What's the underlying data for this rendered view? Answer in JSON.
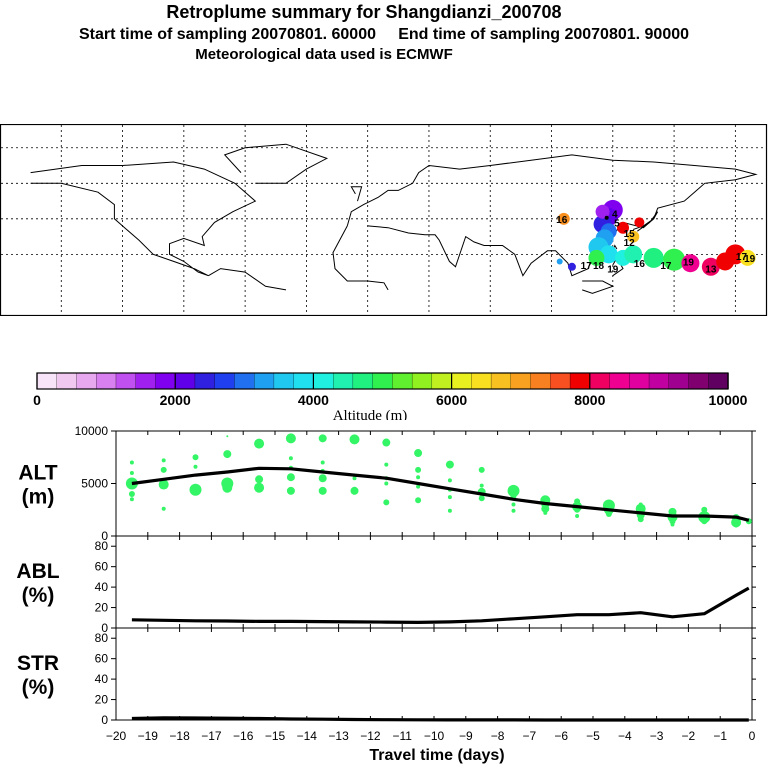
{
  "header": {
    "title": "Retroplume summary for Shangdianzi_200708",
    "sampling_line": "Start time of sampling 20070801. 60000     End time of sampling 20070801. 90000",
    "met_line": "Meteorological data used is ECMWF"
  },
  "colorbar": {
    "label": "Altitude (m)",
    "tick_labels": [
      "0",
      "2000",
      "4000",
      "6000",
      "8000",
      "10000"
    ],
    "colors": [
      "#f8e4f8",
      "#f0c8f0",
      "#e8a8f0",
      "#d880f0",
      "#c050f0",
      "#a020f0",
      "#8000f0",
      "#6000e8",
      "#3020e0",
      "#2040f0",
      "#2070f0",
      "#20a0f0",
      "#20c8f0",
      "#20e0f0",
      "#20f0e0",
      "#20f0b0",
      "#20f080",
      "#30f050",
      "#60f030",
      "#90f020",
      "#c0f020",
      "#e8f020",
      "#f8e020",
      "#f8c020",
      "#f8a020",
      "#f88020",
      "#f85020",
      "#f00000",
      "#f00060",
      "#f00090",
      "#e000a0",
      "#c000a0",
      "#a00090",
      "#800070",
      "#600060"
    ]
  },
  "map": {
    "station": "Shangdianzi",
    "labels": [
      {
        "text": "16",
        "lon": 95,
        "lat": 40,
        "color": "#f89020"
      },
      {
        "text": "4",
        "lon": 121,
        "lat": 43,
        "color": "#7000e8"
      },
      {
        "text": "5",
        "lon": 122,
        "lat": 38,
        "color": "#2040f0"
      },
      {
        "text": "12",
        "lon": 128,
        "lat": 27,
        "color": "#f8e020"
      },
      {
        "text": "15",
        "lon": 128,
        "lat": 32,
        "color": "#f8e020"
      },
      {
        "text": "17",
        "lon": 107,
        "lat": 14,
        "color": "#20f0b0"
      },
      {
        "text": "18",
        "lon": 113,
        "lat": 14,
        "color": "#20e0f0"
      },
      {
        "text": "19",
        "lon": 120,
        "lat": 12,
        "color": "#20c8f0"
      },
      {
        "text": "16",
        "lon": 133,
        "lat": 15,
        "color": "#30f050"
      },
      {
        "text": "17",
        "lon": 146,
        "lat": 14,
        "color": "#30f050"
      },
      {
        "text": "19",
        "lon": 157,
        "lat": 16,
        "color": "#60f030"
      },
      {
        "text": "13",
        "lon": 168,
        "lat": 12,
        "color": "#f00090"
      },
      {
        "text": "17",
        "lon": 183,
        "lat": 19,
        "color": "#f00000"
      },
      {
        "text": "19",
        "lon": 187,
        "lat": 18,
        "color": "#f8e020"
      }
    ]
  },
  "chart_data": [
    {
      "type": "line",
      "name": "ALT",
      "ylabel": "ALT\n(m)",
      "ylabel_lines": [
        "ALT",
        "(m)"
      ],
      "xlim": [
        -20,
        0
      ],
      "ylim": [
        0,
        10000
      ],
      "yticks": [
        "10000",
        "5000",
        "0"
      ],
      "ytick_values": [
        10000,
        5000,
        0
      ],
      "x": [
        -19.5,
        -18.5,
        -17.5,
        -16.5,
        -15.5,
        -14.5,
        -13.5,
        -12.5,
        -11.5,
        -10.5,
        -9.5,
        -8.5,
        -7.5,
        -6.5,
        -5.5,
        -4.5,
        -3.5,
        -2.5,
        -1.5,
        -0.5,
        -0.1
      ],
      "y": [
        5000,
        5400,
        5800,
        6100,
        6450,
        6400,
        6100,
        5800,
        5500,
        5000,
        4500,
        4000,
        3500,
        3100,
        2800,
        2500,
        2200,
        1900,
        1900,
        1800,
        1500
      ],
      "scatter": {
        "color": "#33f566",
        "points": [
          [
            -19.5,
            5000,
            6
          ],
          [
            -19.5,
            7000,
            2
          ],
          [
            -19.5,
            6000,
            2
          ],
          [
            -19.5,
            4000,
            3
          ],
          [
            -19.5,
            3500,
            2
          ],
          [
            -18.5,
            7200,
            2
          ],
          [
            -18.5,
            4900,
            5
          ],
          [
            -18.5,
            6300,
            3
          ],
          [
            -18.5,
            2600,
            2
          ],
          [
            -17.5,
            7500,
            3
          ],
          [
            -17.5,
            4400,
            6
          ],
          [
            -17.5,
            6600,
            2
          ],
          [
            -16.5,
            7800,
            4
          ],
          [
            -16.5,
            5000,
            6
          ],
          [
            -16.5,
            4600,
            5
          ],
          [
            -16.5,
            9500,
            1
          ],
          [
            -15.5,
            8800,
            5
          ],
          [
            -15.5,
            5400,
            4
          ],
          [
            -15.5,
            4600,
            5
          ],
          [
            -14.5,
            9300,
            5
          ],
          [
            -14.5,
            5600,
            4
          ],
          [
            -14.5,
            4300,
            4
          ],
          [
            -14.5,
            7400,
            2
          ],
          [
            -14.5,
            6500,
            2
          ],
          [
            -13.5,
            9300,
            4
          ],
          [
            -13.5,
            7000,
            2
          ],
          [
            -13.5,
            5500,
            4
          ],
          [
            -13.5,
            4300,
            4
          ],
          [
            -13.5,
            6200,
            2
          ],
          [
            -12.5,
            9200,
            5
          ],
          [
            -12.5,
            5500,
            2
          ],
          [
            -12.5,
            4300,
            4
          ],
          [
            -12.5,
            4500,
            2
          ],
          [
            -11.5,
            8900,
            4
          ],
          [
            -11.5,
            6800,
            2
          ],
          [
            -11.5,
            5500,
            2
          ],
          [
            -11.5,
            3200,
            3
          ],
          [
            -11.5,
            5000,
            2
          ],
          [
            -10.5,
            7900,
            4
          ],
          [
            -10.5,
            6300,
            3
          ],
          [
            -10.5,
            4700,
            2
          ],
          [
            -10.5,
            3400,
            3
          ],
          [
            -10.5,
            5600,
            2
          ],
          [
            -9.5,
            6800,
            4
          ],
          [
            -9.5,
            4400,
            2
          ],
          [
            -9.5,
            3700,
            2
          ],
          [
            -9.5,
            2400,
            2
          ],
          [
            -9.5,
            5300,
            2
          ],
          [
            -8.5,
            6300,
            3
          ],
          [
            -8.5,
            4200,
            4
          ],
          [
            -8.5,
            3600,
            3
          ],
          [
            -8.5,
            4800,
            2
          ],
          [
            -7.5,
            4300,
            6
          ],
          [
            -7.5,
            3800,
            3
          ],
          [
            -7.5,
            3000,
            2
          ],
          [
            -7.5,
            2400,
            2
          ],
          [
            -6.5,
            3400,
            5
          ],
          [
            -6.5,
            3000,
            4
          ],
          [
            -6.5,
            2600,
            4
          ],
          [
            -6.5,
            2200,
            2
          ],
          [
            -5.5,
            3300,
            3
          ],
          [
            -5.5,
            2800,
            5
          ],
          [
            -5.5,
            2500,
            3
          ],
          [
            -5.5,
            1900,
            2
          ],
          [
            -4.5,
            2900,
            6
          ],
          [
            -4.5,
            2500,
            5
          ],
          [
            -4.5,
            2100,
            3
          ],
          [
            -3.5,
            2600,
            5
          ],
          [
            -3.5,
            2000,
            4
          ],
          [
            -3.5,
            1600,
            3
          ],
          [
            -3.5,
            3000,
            2
          ],
          [
            -2.5,
            2300,
            4
          ],
          [
            -2.5,
            1800,
            5
          ],
          [
            -2.5,
            1400,
            3
          ],
          [
            -2.5,
            1100,
            2
          ],
          [
            -1.5,
            2500,
            3
          ],
          [
            -1.5,
            1800,
            6
          ],
          [
            -1.5,
            1400,
            3
          ],
          [
            -0.5,
            1700,
            4
          ],
          [
            -0.5,
            1300,
            5
          ],
          [
            -0.5,
            1000,
            2
          ],
          [
            -0.1,
            1400,
            3
          ]
        ]
      }
    },
    {
      "type": "line",
      "name": "ABL",
      "ylabel_lines": [
        "ABL",
        "(%)"
      ],
      "xlim": [
        -20,
        0
      ],
      "ylim": [
        0,
        90
      ],
      "yticks": [
        "80",
        "60",
        "40",
        "20",
        "0"
      ],
      "ytick_values": [
        80,
        60,
        40,
        20,
        0
      ],
      "x": [
        -19.5,
        -18.5,
        -17.5,
        -16.5,
        -15.5,
        -14.5,
        -13.5,
        -12.5,
        -11.5,
        -10.5,
        -9.5,
        -8.5,
        -7.5,
        -6.5,
        -5.5,
        -4.5,
        -3.5,
        -2.5,
        -1.5,
        -0.5,
        -0.1
      ],
      "y": [
        8,
        7.5,
        7,
        6.8,
        6.5,
        6.5,
        6.3,
        6,
        5.8,
        5.5,
        6,
        7,
        9,
        11,
        13,
        13,
        15,
        11,
        14,
        32,
        39
      ]
    },
    {
      "type": "line",
      "name": "STR",
      "ylabel_lines": [
        "STR",
        "(%)"
      ],
      "xlim": [
        -20,
        0
      ],
      "ylim": [
        0,
        90
      ],
      "yticks": [
        "80",
        "60",
        "40",
        "20",
        "0"
      ],
      "ytick_values": [
        80,
        60,
        40,
        20,
        0
      ],
      "x": [
        -19.5,
        -18.5,
        -17.5,
        -16.5,
        -15.5,
        -14.5,
        -13.5,
        -12.5,
        -11.5,
        -10.5,
        -9.5,
        -8.5,
        -7.5,
        -6.5,
        -5.5,
        -4.5,
        -3.5,
        -2.5,
        -1.5,
        -0.5,
        -0.1
      ],
      "y": [
        1.5,
        2.2,
        2,
        1.8,
        1.5,
        1,
        0.8,
        0.5,
        0.3,
        0.2,
        0.1,
        0.1,
        0.1,
        0,
        0,
        0,
        0,
        0,
        0,
        0,
        0
      ]
    }
  ],
  "x_axis": {
    "ticks": [
      -20,
      -19,
      -18,
      -17,
      -16,
      -15,
      -14,
      -13,
      -12,
      -11,
      -10,
      -9,
      -8,
      -7,
      -6,
      -5,
      -4,
      -3,
      -2,
      -1,
      0
    ],
    "tick_labels": [
      "−20",
      "−19",
      "−18",
      "−17",
      "−16",
      "−15",
      "−14",
      "−13",
      "−12",
      "−11",
      "−10",
      "−9",
      "−8",
      "−7",
      "−6",
      "−5",
      "−4",
      "−3",
      "−2",
      "−1",
      "0"
    ],
    "label": "Travel time (days)"
  }
}
